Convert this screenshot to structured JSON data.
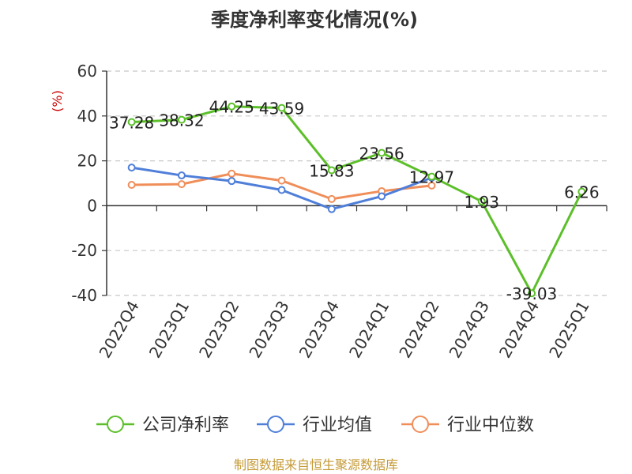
{
  "chart_data": {
    "type": "line",
    "title": "季度净利率变化情况(%)",
    "ylabel": "(%)",
    "categories": [
      "2022Q4",
      "2023Q1",
      "2023Q2",
      "2023Q3",
      "2023Q4",
      "2024Q1",
      "2024Q2",
      "2024Q3",
      "2024Q4",
      "2025Q1"
    ],
    "ylim": [
      -40,
      60
    ],
    "yticks": [
      60,
      40,
      20,
      0,
      -20,
      -40
    ],
    "grid": true,
    "legend_position": "bottom",
    "series": [
      {
        "name": "公司净利率",
        "color": "#5cbf2a",
        "values": [
          37.28,
          38.32,
          44.25,
          43.59,
          15.83,
          23.56,
          12.97,
          1.93,
          -39.03,
          6.26
        ],
        "labels": [
          "37.28",
          "38.32",
          "44.25",
          "43.59",
          "15.83",
          "23.56",
          "12.97",
          "1.93",
          "-39.03",
          "6.26"
        ]
      },
      {
        "name": "行业均值",
        "color": "#4f7fd9",
        "values": [
          17.0,
          13.5,
          11.0,
          7.0,
          -1.5,
          4.2,
          12.5,
          null,
          null,
          null
        ]
      },
      {
        "name": "行业中位数",
        "color": "#f08e5a",
        "values": [
          9.3,
          9.6,
          14.3,
          11.2,
          3.0,
          6.5,
          9.0,
          null,
          null,
          null
        ]
      }
    ],
    "source": "制图数据来自恒生聚源数据库"
  }
}
